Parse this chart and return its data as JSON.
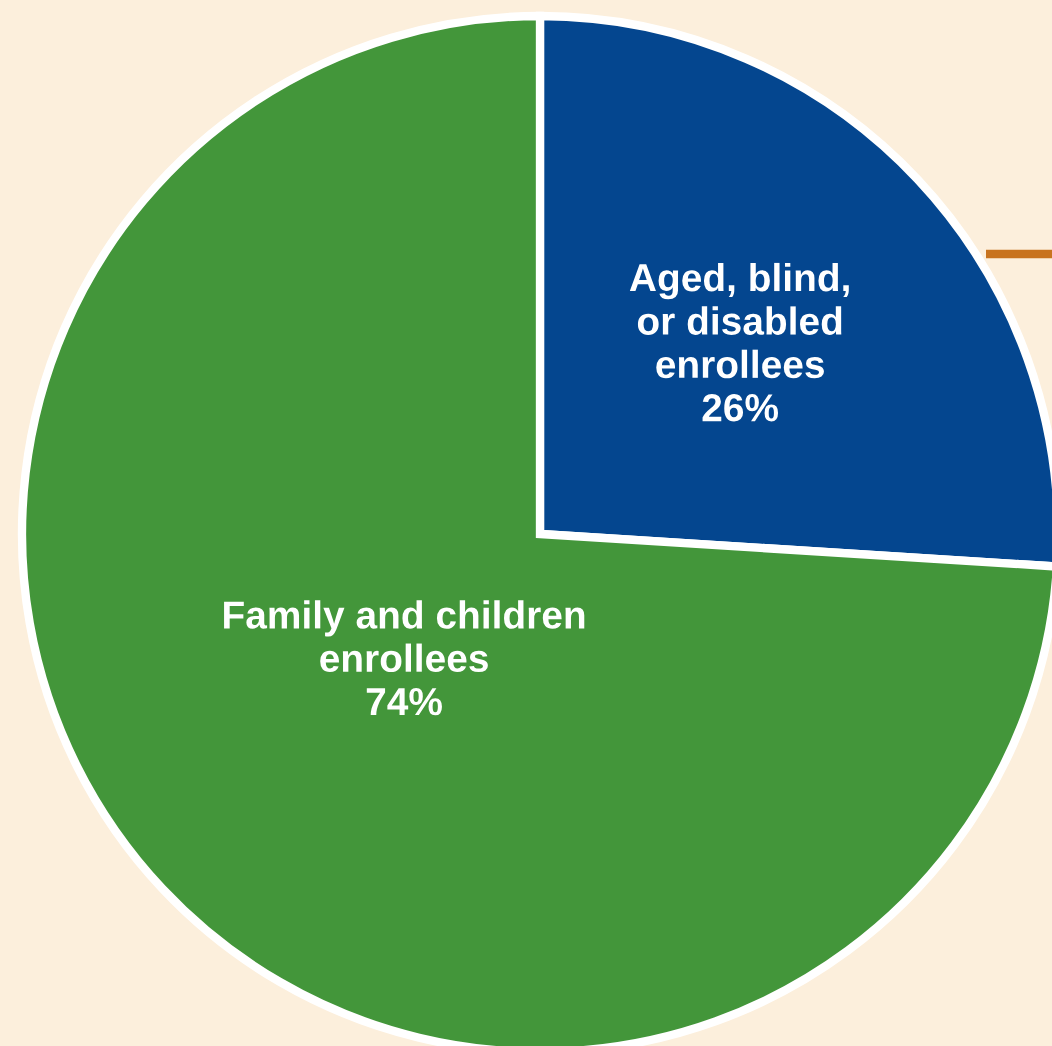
{
  "chart_data": {
    "type": "pie",
    "categories": [
      "Aged, blind,\nor disabled\nenrollees",
      "Family and children\nenrollees"
    ],
    "values": [
      26,
      74
    ],
    "colors": [
      "#04468f",
      "#43963a"
    ],
    "value_labels": [
      "26%",
      "74%"
    ],
    "legend": false
  }
}
